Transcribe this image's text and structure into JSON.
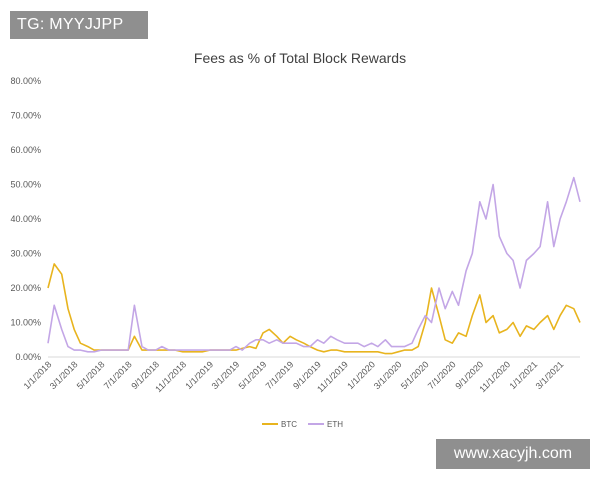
{
  "watermark_top": "TG: MYYJJPP",
  "watermark_bottom": "www.xacyjh.com",
  "chart_data": {
    "type": "line",
    "title": "Fees as % of Total Block Rewards",
    "xlabel": "",
    "ylabel": "",
    "ylim": [
      0,
      80
    ],
    "ytick_labels": [
      "0.00%",
      "10.00%",
      "20.00%",
      "30.00%",
      "40.00%",
      "50.00%",
      "60.00%",
      "70.00%",
      "80.00%"
    ],
    "x_tick_labels": [
      "1/1/2018",
      "3/1/2018",
      "5/1/2018",
      "7/1/2018",
      "9/1/2018",
      "11/1/2018",
      "1/1/2019",
      "3/1/2019",
      "5/1/2019",
      "7/1/2019",
      "9/1/2019",
      "11/1/2019",
      "1/1/2020",
      "3/1/2020",
      "5/1/2020",
      "7/1/2020",
      "9/1/2020",
      "11/1/2020",
      "1/1/2021",
      "3/1/2021"
    ],
    "x": [
      "2018-01-01",
      "2018-01-15",
      "2018-02-01",
      "2018-02-15",
      "2018-03-01",
      "2018-03-15",
      "2018-04-01",
      "2018-04-15",
      "2018-05-01",
      "2018-05-15",
      "2018-06-01",
      "2018-06-15",
      "2018-07-01",
      "2018-07-15",
      "2018-08-01",
      "2018-08-15",
      "2018-09-01",
      "2018-09-15",
      "2018-10-01",
      "2018-10-15",
      "2018-11-01",
      "2018-11-15",
      "2018-12-01",
      "2018-12-15",
      "2019-01-01",
      "2019-01-15",
      "2019-02-01",
      "2019-02-15",
      "2019-03-01",
      "2019-03-15",
      "2019-04-01",
      "2019-04-15",
      "2019-05-01",
      "2019-05-15",
      "2019-06-01",
      "2019-06-15",
      "2019-07-01",
      "2019-07-15",
      "2019-08-01",
      "2019-08-15",
      "2019-09-01",
      "2019-09-15",
      "2019-10-01",
      "2019-10-15",
      "2019-11-01",
      "2019-11-15",
      "2019-12-01",
      "2019-12-15",
      "2020-01-01",
      "2020-01-15",
      "2020-02-01",
      "2020-02-15",
      "2020-03-01",
      "2020-03-15",
      "2020-04-01",
      "2020-04-15",
      "2020-05-01",
      "2020-05-15",
      "2020-06-01",
      "2020-06-15",
      "2020-07-01",
      "2020-07-15",
      "2020-08-01",
      "2020-08-15",
      "2020-09-01",
      "2020-09-15",
      "2020-10-01",
      "2020-10-15",
      "2020-11-01",
      "2020-11-15",
      "2020-12-01",
      "2020-12-15",
      "2021-01-01",
      "2021-01-15",
      "2021-02-01",
      "2021-02-15",
      "2021-03-01",
      "2021-03-15",
      "2021-04-01",
      "2021-04-15"
    ],
    "series": [
      {
        "name": "BTC",
        "color": "#e8b41e",
        "values": [
          20,
          27,
          24,
          14,
          8,
          4,
          3,
          2,
          2,
          2,
          2,
          2,
          2,
          6,
          2,
          2,
          2,
          2,
          2,
          2,
          1.5,
          1.5,
          1.5,
          1.5,
          2,
          2,
          2,
          2,
          2,
          2.5,
          3,
          2.5,
          7,
          8,
          6,
          4,
          6,
          5,
          4,
          3,
          2,
          1.5,
          2,
          2,
          1.5,
          1.5,
          1.5,
          1.5,
          1.5,
          1.5,
          1,
          1,
          1.5,
          2,
          2,
          3,
          10,
          20,
          12,
          5,
          4,
          7,
          6,
          12,
          18,
          10,
          12,
          7,
          8,
          10,
          6,
          9,
          8,
          10,
          12,
          8,
          12,
          15,
          14,
          10
        ]
      },
      {
        "name": "ETH",
        "color": "#c3a6e6",
        "values": [
          4,
          15,
          8,
          3,
          2,
          2,
          1.5,
          1.5,
          2,
          2,
          2,
          2,
          2,
          15,
          3,
          2,
          2,
          3,
          2,
          2,
          2,
          2,
          2,
          2,
          2,
          2,
          2,
          2,
          3,
          2,
          4,
          5,
          5,
          4,
          5,
          4,
          4,
          4,
          3,
          3,
          5,
          4,
          6,
          5,
          4,
          4,
          4,
          3,
          4,
          3,
          5,
          3,
          3,
          3,
          4,
          8,
          12,
          10,
          20,
          14,
          19,
          15,
          25,
          30,
          45,
          40,
          50,
          35,
          30,
          28,
          20,
          28,
          30,
          32,
          45,
          32,
          40,
          45,
          52,
          45
        ]
      }
    ],
    "legend": {
      "placement": "bottom-center",
      "entries": [
        "BTC",
        "ETH"
      ]
    },
    "grid": false
  }
}
